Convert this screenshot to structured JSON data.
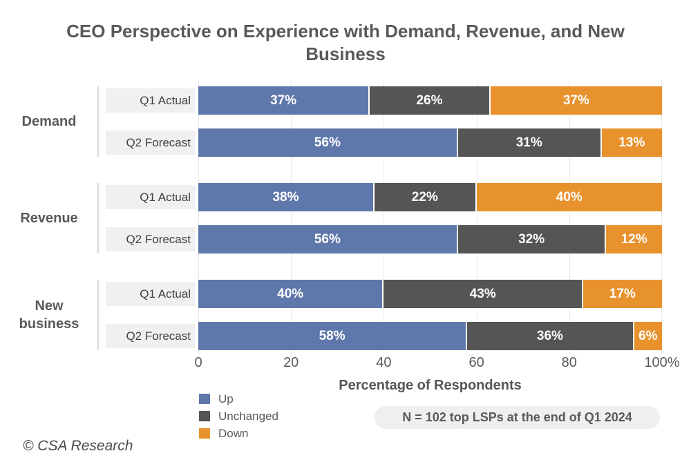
{
  "title": "CEO Perspective on Experience with Demand, Revenue, and New Business",
  "footer": "© CSA Research",
  "note": "N = 102 top LSPs at the end of Q1 2024",
  "colors": {
    "up": "#5F78AB",
    "unchanged": "#555555",
    "down": "#E8922D",
    "label_box_bg": "#F0F0F0",
    "gridline": "#E9E9E9",
    "text_dark": "#595959"
  },
  "chart_data": {
    "type": "bar",
    "orientation": "horizontal",
    "stacked": true,
    "unit": "%",
    "xlabel": "Percentage of Respondents",
    "xlim": [
      0,
      100
    ],
    "x_ticks": [
      "0",
      "20",
      "40",
      "60",
      "80",
      "100%"
    ],
    "grid": "vertical gridlines at 0/20/40/60/80/100",
    "legend_position": "bottom-left",
    "legend": [
      {
        "name": "Up",
        "color": "#5F78AB"
      },
      {
        "name": "Unchanged",
        "color": "#555555"
      },
      {
        "name": "Down",
        "color": "#E8922D"
      }
    ],
    "groups": [
      {
        "category": "Demand",
        "rows": [
          {
            "label": "Q1 Actual",
            "segments": [
              {
                "series": "Up",
                "value": 37,
                "label": "37%"
              },
              {
                "series": "Unchanged",
                "value": 26,
                "label": "26%"
              },
              {
                "series": "Down",
                "value": 37,
                "label": "37%"
              }
            ]
          },
          {
            "label": "Q2 Forecast",
            "segments": [
              {
                "series": "Up",
                "value": 56,
                "label": "56%"
              },
              {
                "series": "Unchanged",
                "value": 31,
                "label": "31%"
              },
              {
                "series": "Down",
                "value": 13,
                "label": "13%"
              }
            ]
          }
        ]
      },
      {
        "category": "Revenue",
        "rows": [
          {
            "label": "Q1 Actual",
            "segments": [
              {
                "series": "Up",
                "value": 38,
                "label": "38%"
              },
              {
                "series": "Unchanged",
                "value": 22,
                "label": "22%"
              },
              {
                "series": "Down",
                "value": 40,
                "label": "40%"
              }
            ]
          },
          {
            "label": "Q2 Forecast",
            "segments": [
              {
                "series": "Up",
                "value": 56,
                "label": "56%"
              },
              {
                "series": "Unchanged",
                "value": 32,
                "label": "32%"
              },
              {
                "series": "Down",
                "value": 12,
                "label": "12%"
              }
            ]
          }
        ]
      },
      {
        "category": "New business",
        "rows": [
          {
            "label": "Q1 Actual",
            "segments": [
              {
                "series": "Up",
                "value": 40,
                "label": "40%"
              },
              {
                "series": "Unchanged",
                "value": 43,
                "label": "43%"
              },
              {
                "series": "Down",
                "value": 17,
                "label": "17%"
              }
            ]
          },
          {
            "label": "Q2 Forecast",
            "segments": [
              {
                "series": "Up",
                "value": 58,
                "label": "58%"
              },
              {
                "series": "Unchanged",
                "value": 36,
                "label": "36%"
              },
              {
                "series": "Down",
                "value": 6,
                "label": "6%"
              }
            ]
          }
        ]
      }
    ]
  }
}
